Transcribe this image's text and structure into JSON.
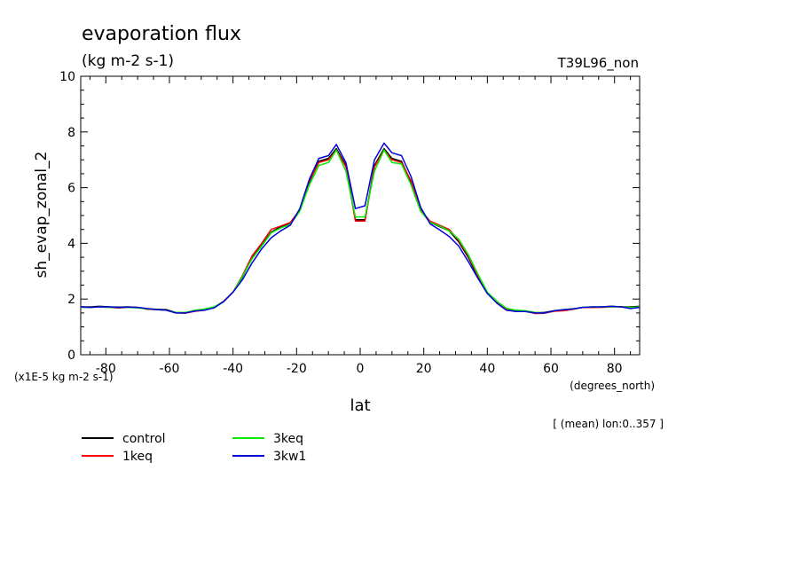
{
  "chart_data": {
    "type": "line",
    "title": "evaporation flux",
    "subtitle": "(kg m-2 s-1)",
    "run_label": "T39L96_non",
    "xlabel": "lat",
    "xunits": "(degrees_north)",
    "ylabel": "sh_evap_zonal_2",
    "yunits": "(x1E-5 kg m-2 s-1)",
    "footnote": "[ (mean) lon:0..357 ]",
    "xlim": [
      -87.9,
      87.9
    ],
    "ylim": [
      0,
      10
    ],
    "xticks": [
      -80,
      -60,
      -40,
      -20,
      0,
      20,
      40,
      60,
      80
    ],
    "xtick_labels": [
      "-80",
      "-60",
      "-40",
      "-20",
      "0",
      "20",
      "40",
      "60",
      "80"
    ],
    "yticks": [
      0,
      2,
      4,
      6,
      8,
      10
    ],
    "ytick_labels": [
      "0",
      "2",
      "4",
      "6",
      "8",
      "10"
    ],
    "x": [
      -87.9,
      -85,
      -82,
      -79,
      -76,
      -73,
      -70,
      -67,
      -64,
      -61,
      -58,
      -55,
      -52,
      -49,
      -46,
      -43,
      -40,
      -37,
      -34,
      -31,
      -28,
      -25,
      -22,
      -19,
      -16,
      -13,
      -10,
      -7.5,
      -4.5,
      -1.5,
      1.5,
      4.5,
      7.5,
      10,
      13,
      16,
      19,
      22,
      25,
      28,
      31,
      34,
      37,
      40,
      43,
      46,
      49,
      52,
      55,
      58,
      61,
      64,
      67,
      70,
      73,
      76,
      79,
      82,
      85,
      87.9
    ],
    "series": [
      {
        "name": "control",
        "color": "#000000",
        "values": [
          1.72,
          1.72,
          1.74,
          1.72,
          1.71,
          1.72,
          1.7,
          1.65,
          1.63,
          1.62,
          1.52,
          1.5,
          1.58,
          1.6,
          1.7,
          1.9,
          2.25,
          2.8,
          3.5,
          3.95,
          4.4,
          4.6,
          4.7,
          5.2,
          6.2,
          6.95,
          7.05,
          7.4,
          6.8,
          4.85,
          4.85,
          6.8,
          7.4,
          7.05,
          6.95,
          6.2,
          5.2,
          4.75,
          4.6,
          4.45,
          4.05,
          3.5,
          2.8,
          2.2,
          1.9,
          1.65,
          1.57,
          1.55,
          1.5,
          1.52,
          1.58,
          1.6,
          1.65,
          1.7,
          1.7,
          1.72,
          1.74,
          1.72,
          1.72,
          1.74
        ]
      },
      {
        "name": "1keq",
        "color": "#ff0000",
        "values": [
          1.72,
          1.7,
          1.72,
          1.7,
          1.68,
          1.7,
          1.7,
          1.63,
          1.62,
          1.6,
          1.5,
          1.49,
          1.56,
          1.6,
          1.7,
          1.92,
          2.25,
          2.85,
          3.55,
          4.0,
          4.5,
          4.62,
          4.75,
          5.2,
          6.25,
          6.9,
          7.0,
          7.35,
          6.75,
          4.8,
          4.8,
          6.75,
          7.35,
          7.0,
          6.9,
          6.25,
          5.2,
          4.8,
          4.65,
          4.5,
          4.1,
          3.55,
          2.85,
          2.22,
          1.88,
          1.63,
          1.58,
          1.57,
          1.48,
          1.49,
          1.56,
          1.58,
          1.63,
          1.7,
          1.7,
          1.7,
          1.72,
          1.73,
          1.7,
          1.72
        ]
      },
      {
        "name": "3keq",
        "color": "#00ee00",
        "values": [
          1.7,
          1.7,
          1.72,
          1.7,
          1.7,
          1.7,
          1.68,
          1.65,
          1.62,
          1.6,
          1.52,
          1.52,
          1.6,
          1.64,
          1.72,
          1.9,
          2.25,
          2.82,
          3.45,
          3.9,
          4.38,
          4.55,
          4.68,
          5.15,
          6.1,
          6.8,
          6.9,
          7.35,
          6.6,
          4.95,
          4.95,
          6.6,
          7.35,
          6.9,
          6.85,
          6.1,
          5.15,
          4.75,
          4.62,
          4.45,
          4.15,
          3.6,
          2.9,
          2.25,
          1.92,
          1.67,
          1.6,
          1.58,
          1.52,
          1.5,
          1.58,
          1.62,
          1.65,
          1.7,
          1.72,
          1.72,
          1.72,
          1.72,
          1.7,
          1.72
        ]
      },
      {
        "name": "3kw1",
        "color": "#0000dd",
        "values": [
          1.72,
          1.7,
          1.72,
          1.72,
          1.7,
          1.71,
          1.7,
          1.66,
          1.62,
          1.6,
          1.5,
          1.5,
          1.57,
          1.6,
          1.68,
          1.9,
          2.25,
          2.7,
          3.3,
          3.8,
          4.2,
          4.45,
          4.65,
          5.25,
          6.3,
          7.05,
          7.15,
          7.55,
          6.9,
          5.25,
          5.35,
          7.0,
          7.6,
          7.25,
          7.15,
          6.4,
          5.3,
          4.7,
          4.48,
          4.25,
          3.9,
          3.35,
          2.75,
          2.2,
          1.85,
          1.6,
          1.55,
          1.55,
          1.5,
          1.5,
          1.58,
          1.62,
          1.65,
          1.7,
          1.72,
          1.72,
          1.74,
          1.72,
          1.66,
          1.7
        ]
      }
    ],
    "legend_position": "bottom-left",
    "grid": false
  }
}
